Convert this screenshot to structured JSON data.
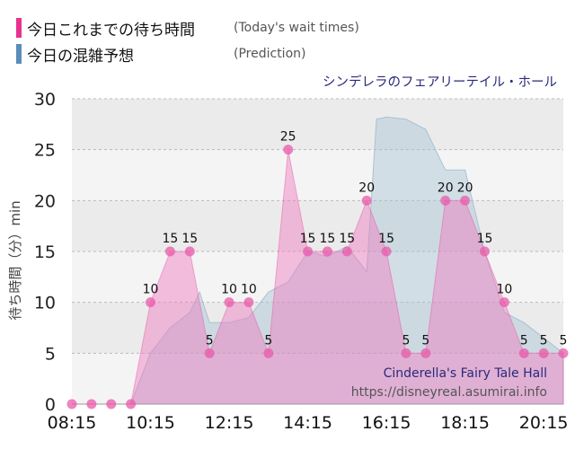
{
  "legend": {
    "actual": {
      "title": "今日これまでの待ち時間",
      "note": "(Today's wait times)",
      "color": "#e8338b"
    },
    "forecast": {
      "title": "今日の混雑予想",
      "note": "(Prediction)",
      "color": "#5b8db8"
    }
  },
  "chart_data": {
    "type": "area",
    "attraction_jp": "シンデレラのフェアリーテイル・ホール",
    "attraction_en": "Cinderella's Fairy Tale Hall",
    "credit": "https://disneyreal.asumirai.info",
    "ylabel": "待ち時間（分）min",
    "ylim": [
      0,
      30
    ],
    "yticks": [
      0,
      5,
      10,
      15,
      20,
      25,
      30
    ],
    "xticks": [
      "08:15",
      "10:15",
      "12:15",
      "14:15",
      "16:15",
      "18:15",
      "20:15"
    ],
    "xlim": [
      "08:15",
      "20:45"
    ],
    "grid": true,
    "series": [
      {
        "name": "今日これまでの待ち時間",
        "color": "#e8338b",
        "fill": "rgba(240,120,190,0.45)",
        "x": [
          "08:15",
          "08:45",
          "09:15",
          "09:45",
          "10:15",
          "10:45",
          "11:15",
          "11:45",
          "12:15",
          "12:45",
          "13:15",
          "13:45",
          "14:15",
          "14:45",
          "15:15",
          "15:45",
          "16:15",
          "16:45",
          "17:15",
          "17:45",
          "18:15",
          "18:45",
          "19:15",
          "19:45",
          "20:15",
          "20:45"
        ],
        "values": [
          0,
          0,
          0,
          0,
          10,
          15,
          15,
          5,
          10,
          10,
          5,
          25,
          15,
          15,
          15,
          20,
          15,
          5,
          5,
          20,
          20,
          15,
          10,
          5,
          5,
          5
        ],
        "labels": [
          null,
          null,
          null,
          null,
          "10",
          "15",
          "15",
          "5",
          "10",
          "10",
          "5",
          "25",
          "15",
          "15",
          "15",
          "20",
          "15",
          "5",
          "5",
          "20",
          "20",
          "15",
          "10",
          "5",
          "5",
          "5"
        ]
      },
      {
        "name": "今日の混雑予想",
        "color": "#5b8db8",
        "fill": "rgba(160,190,210,0.40)",
        "x": [
          "09:45",
          "10:15",
          "10:45",
          "11:15",
          "11:30",
          "11:45",
          "12:15",
          "12:45",
          "13:15",
          "13:45",
          "14:15",
          "14:45",
          "15:15",
          "15:45",
          "16:00",
          "16:15",
          "16:45",
          "17:15",
          "17:45",
          "18:00",
          "18:15",
          "18:45",
          "19:15",
          "19:45",
          "20:15",
          "20:45"
        ],
        "values": [
          0,
          5,
          7.5,
          9,
          11,
          8,
          8,
          8.5,
          11,
          12,
          15,
          14.5,
          15.5,
          13,
          28,
          28.2,
          28,
          27,
          23,
          23,
          23,
          15,
          9,
          8,
          6.5,
          5
        ]
      }
    ]
  }
}
